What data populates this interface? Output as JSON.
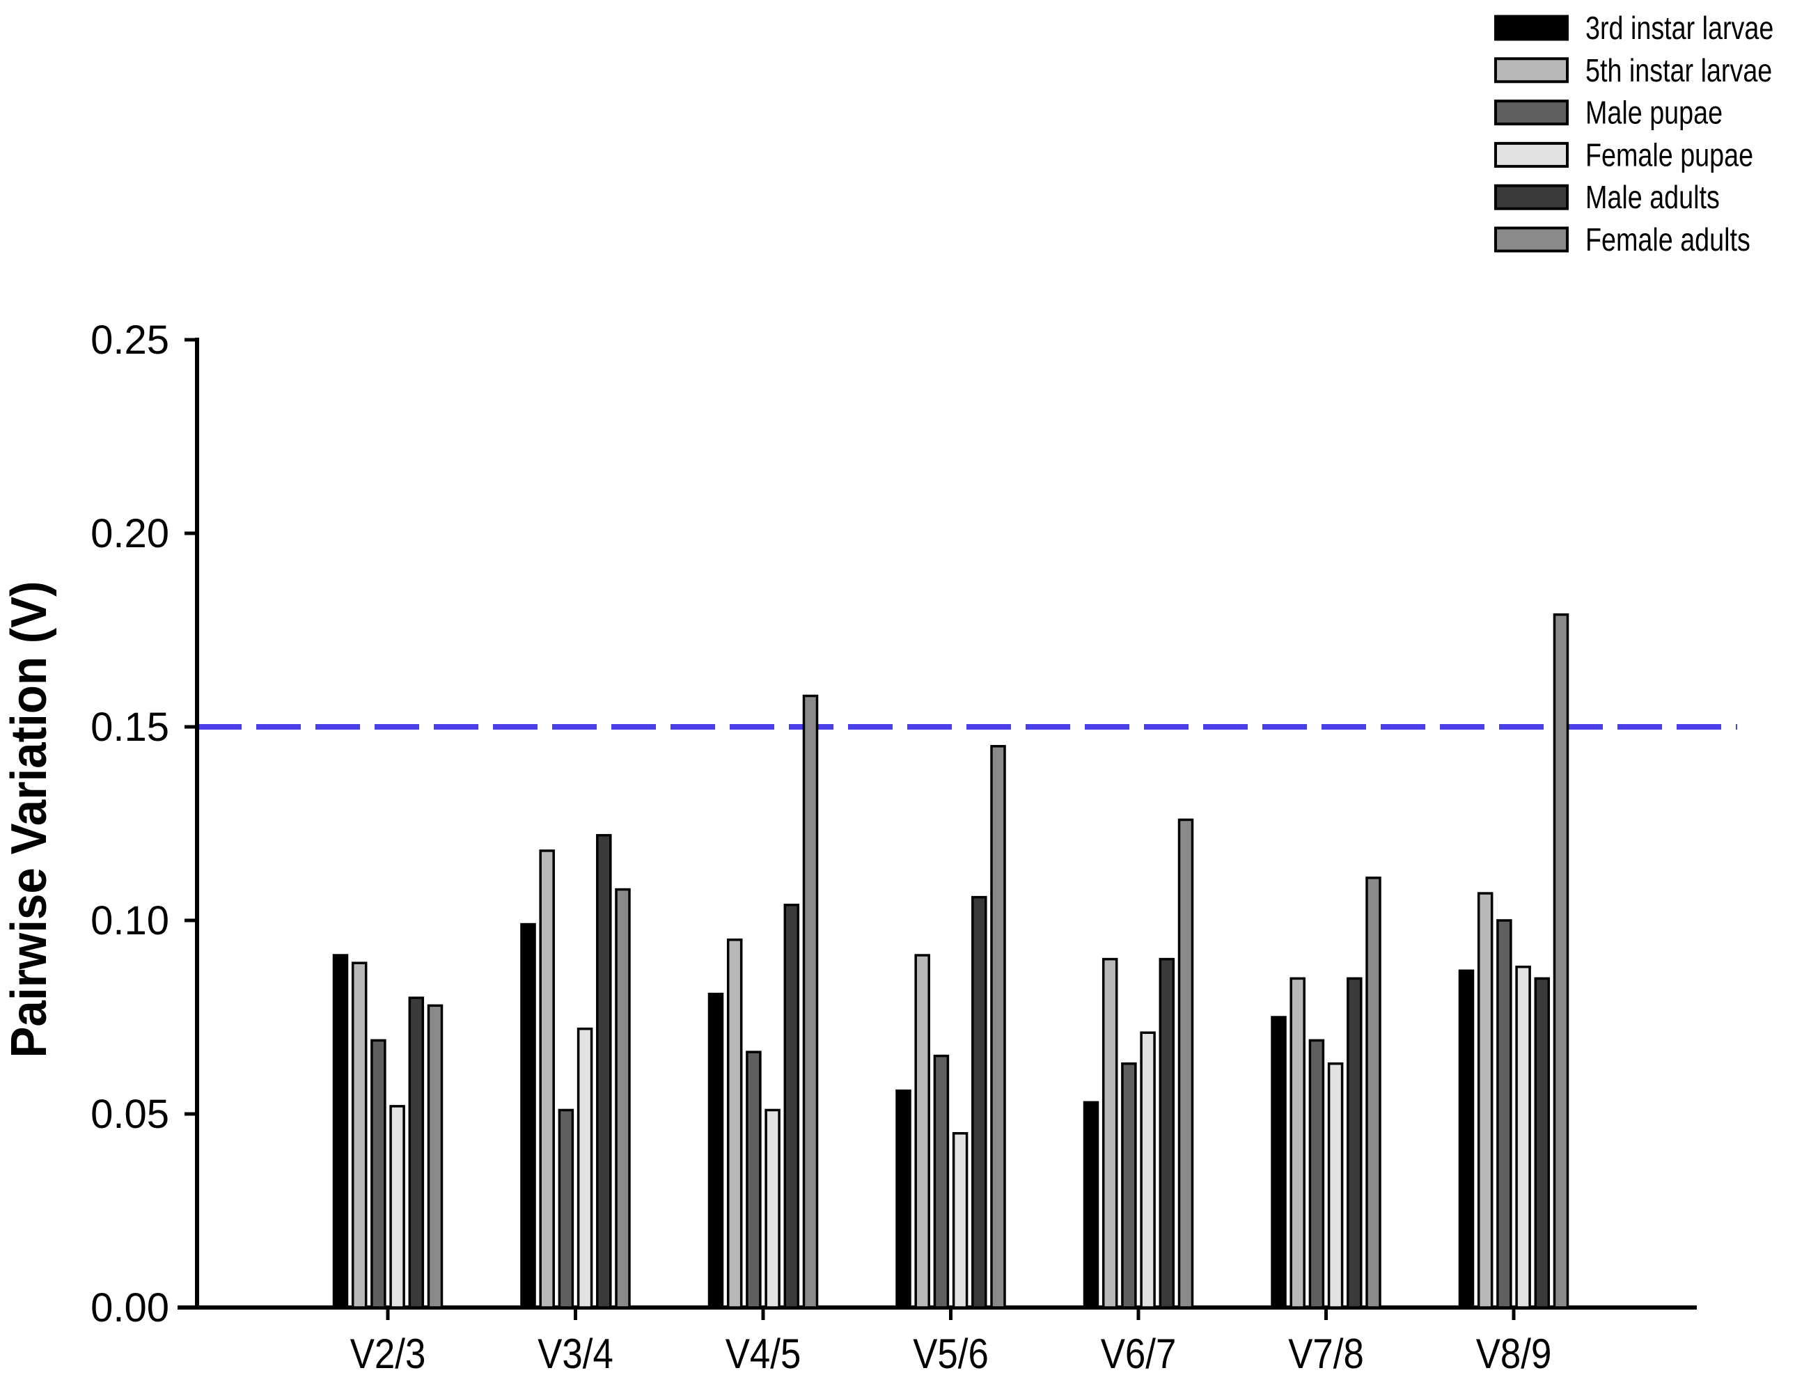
{
  "chart_data": {
    "type": "bar",
    "title": "",
    "xlabel": "",
    "ylabel": "Pairwise Variation (V)",
    "ylim": [
      0,
      0.25
    ],
    "ytick_step": 0.05,
    "ytick_labels": [
      "0.00",
      "0.05",
      "0.10",
      "0.15",
      "0.20",
      "0.25"
    ],
    "categories": [
      "V2/3",
      "V3/4",
      "V4/5",
      "V5/6",
      "V6/7",
      "V7/8",
      "V8/9"
    ],
    "series": [
      {
        "name": "3rd instar larvae",
        "color": "#000000",
        "values": [
          0.091,
          0.099,
          0.081,
          0.056,
          0.053,
          0.075,
          0.087
        ]
      },
      {
        "name": "5th instar larvae",
        "color": "#b8b8b8",
        "values": [
          0.089,
          0.118,
          0.095,
          0.091,
          0.09,
          0.085,
          0.107
        ]
      },
      {
        "name": "Male pupae",
        "color": "#5f5f5f",
        "values": [
          0.069,
          0.051,
          0.066,
          0.065,
          0.063,
          0.069,
          0.1
        ]
      },
      {
        "name": "Female pupae",
        "color": "#e2e2e2",
        "values": [
          0.052,
          0.072,
          0.051,
          0.045,
          0.071,
          0.063,
          0.088
        ]
      },
      {
        "name": "Male adults",
        "color": "#3a3a3a",
        "values": [
          0.08,
          0.122,
          0.104,
          0.106,
          0.09,
          0.085,
          0.085
        ]
      },
      {
        "name": "Female adults",
        "color": "#8a8a8a",
        "values": [
          0.078,
          0.108,
          0.158,
          0.145,
          0.126,
          0.111,
          0.179
        ]
      }
    ],
    "reference_line": {
      "value": 0.15,
      "style": "dashed",
      "color": "#4b3fe8"
    },
    "legend_position": "top-right",
    "grid": false,
    "axis_color": "#000000",
    "background": "#ffffff"
  }
}
